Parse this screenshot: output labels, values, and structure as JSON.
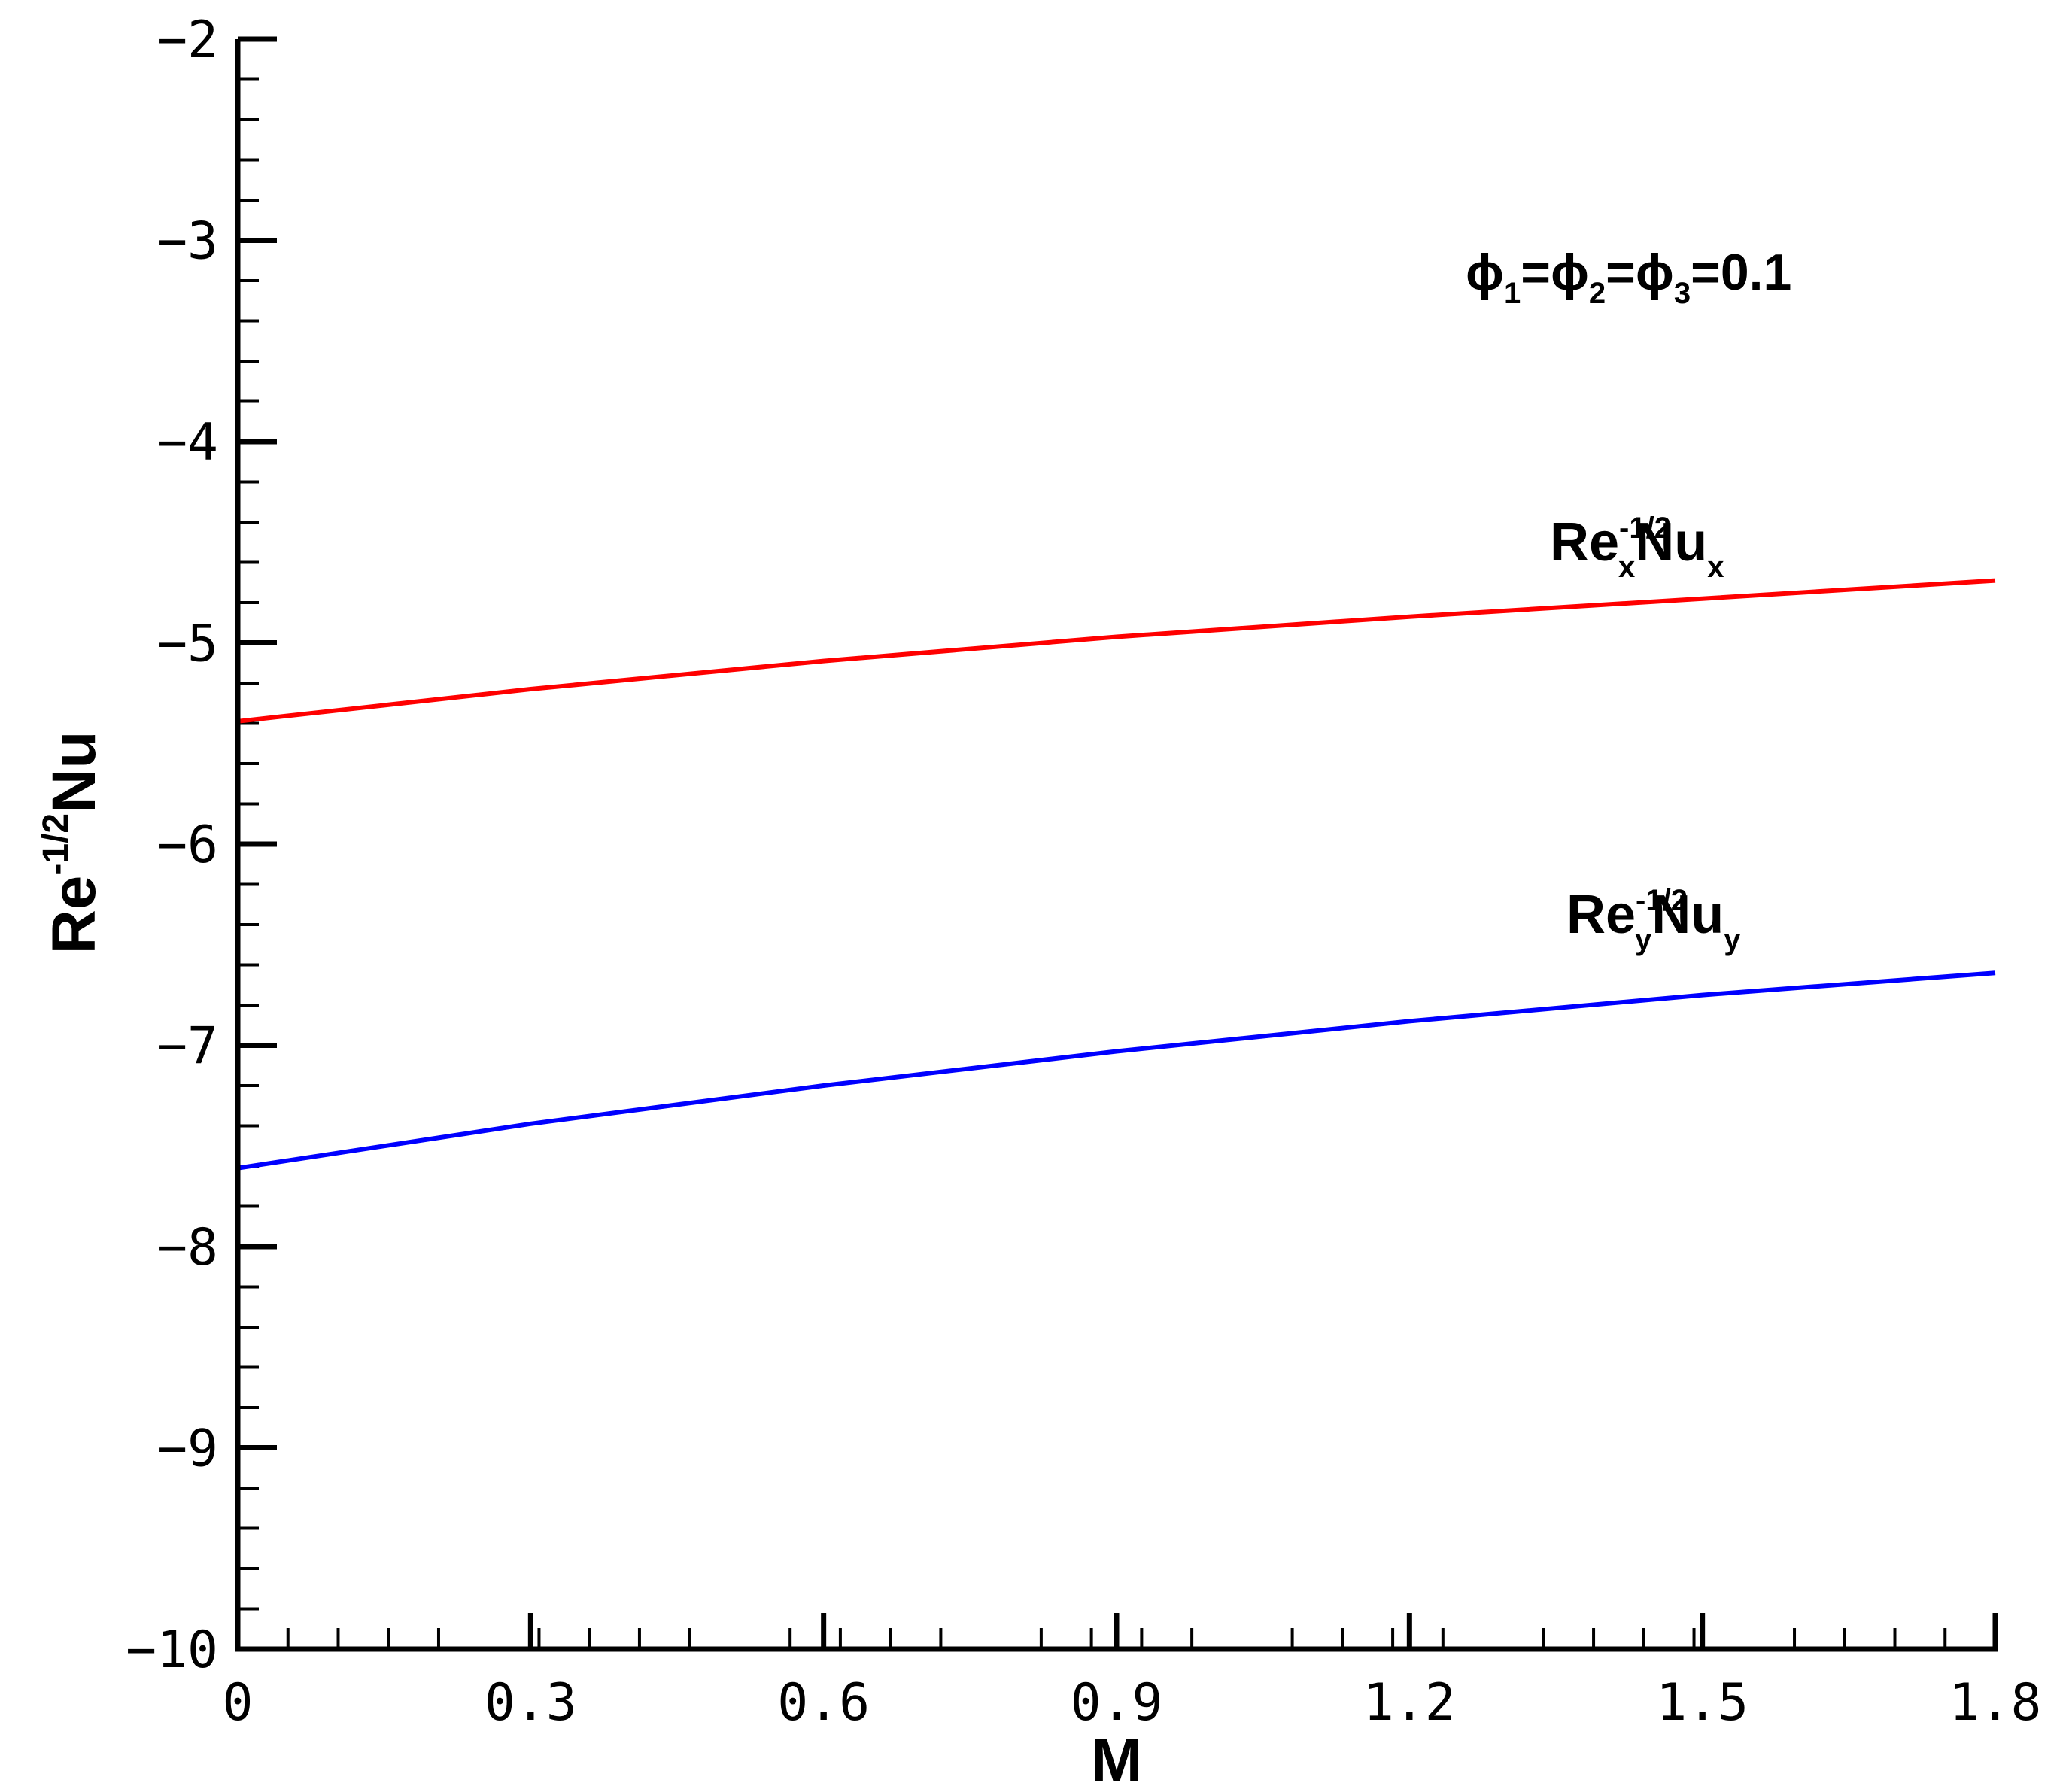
{
  "chart_data": {
    "type": "line",
    "xlabel": "M",
    "ylabel": {
      "base": "Re",
      "sup": "-1/2",
      "tail": "Nu"
    },
    "xlim": [
      0,
      1.8
    ],
    "ylim": [
      -10,
      -2
    ],
    "x_ticks": [
      "0",
      "0.3",
      "0.6",
      "0.9",
      "1.2",
      "1.5",
      "1.8"
    ],
    "y_ticks": [
      "-2",
      "-3",
      "-4",
      "-5",
      "-6",
      "-7",
      "-8",
      "-9",
      "-10"
    ],
    "grid": false,
    "series": [
      {
        "name": "Re-1/2xNux",
        "color": "#ff0000",
        "label": {
          "base": "Re",
          "sup": "-1/2",
          "sub1": "x",
          "mid": "Nu",
          "sub2": "x"
        },
        "x": [
          0,
          0.3,
          0.6,
          0.9,
          1.2,
          1.5,
          1.8
        ],
        "y": [
          -5.39,
          -5.23,
          -5.09,
          -4.97,
          -4.87,
          -4.78,
          -4.69
        ]
      },
      {
        "name": "Re-1/2yNuy",
        "color": "#0000ff",
        "label": {
          "base": "Re",
          "sup": "-1/2",
          "sub1": "y",
          "mid": "Nu",
          "sub2": "y"
        },
        "x": [
          0,
          0.3,
          0.6,
          0.9,
          1.2,
          1.5,
          1.8
        ],
        "y": [
          -7.61,
          -7.39,
          -7.2,
          -7.03,
          -6.88,
          -6.75,
          -6.64
        ]
      }
    ],
    "annotation": {
      "sym": "ϕ",
      "subs": [
        "1",
        "2",
        "3"
      ],
      "value": "0.1"
    }
  }
}
